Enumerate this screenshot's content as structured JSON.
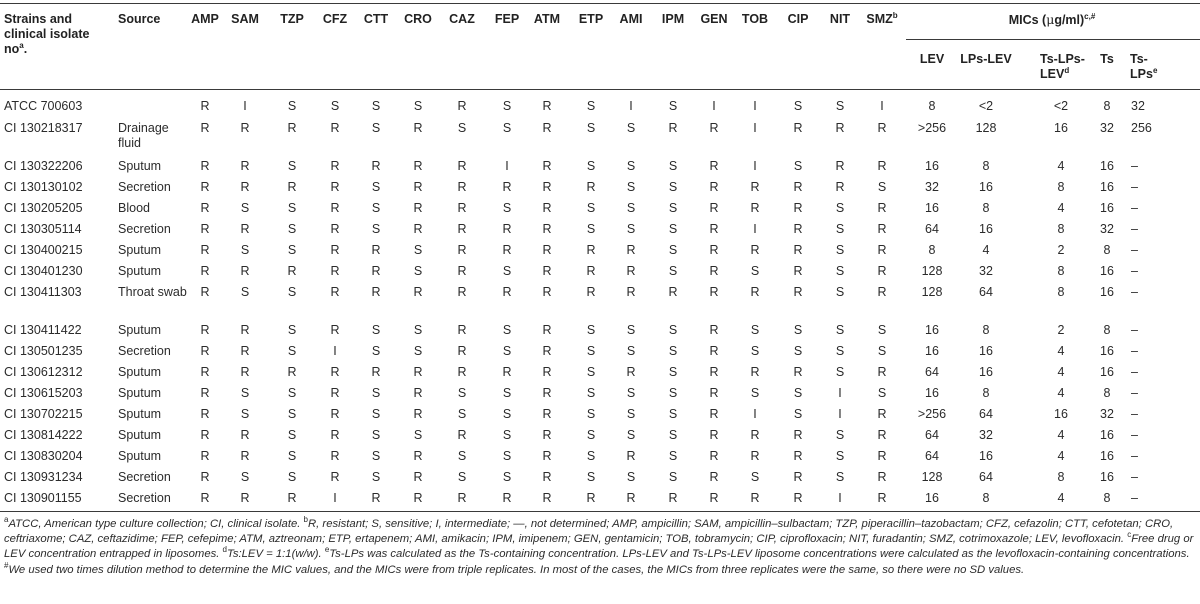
{
  "header": {
    "strains_line1": "Strains and",
    "strains_line2": "clinical isolate",
    "strains_line3": "no",
    "strains_sup": "a",
    "source": "Source",
    "abbrevs": [
      "AMP",
      "SAM",
      "TZP",
      "CFZ",
      "CTT",
      "CRO",
      "CAZ",
      "FEP",
      "ATM",
      "ETP",
      "AMI",
      "IPM",
      "GEN",
      "TOB",
      "CIP",
      "NIT",
      "SMZ"
    ],
    "smz_sup": "b",
    "mics_prefix": "MICs (",
    "mics_mu": "μ",
    "mics_suffix": "g/ml)",
    "mics_sup": "c,#",
    "mic_cols": {
      "lev": "LEV",
      "lps_lev": "LPs-LEV",
      "ts_lps_lev_1": "Ts-LPs-",
      "ts_lps_lev_2": "LEV",
      "ts_lps_lev_sup": "d",
      "ts": "Ts",
      "ts_lps_1": "Ts-",
      "ts_lps_2": "LPs",
      "ts_lps_sup": "e"
    }
  },
  "rows": [
    {
      "id": "ATCC 700603",
      "source": "",
      "vals": [
        "R",
        "I",
        "S",
        "S",
        "S",
        "S",
        "R",
        "S",
        "R",
        "S",
        "I",
        "S",
        "I",
        "I",
        "S",
        "S",
        "I"
      ],
      "mic": [
        "8",
        "<2",
        "<2",
        "8",
        "32"
      ]
    },
    {
      "id": "CI 130218317",
      "source": "Drainage fluid",
      "vals": [
        "R",
        "R",
        "R",
        "R",
        "S",
        "R",
        "S",
        "S",
        "R",
        "S",
        "S",
        "R",
        "R",
        "I",
        "R",
        "R",
        "R"
      ],
      "mic": [
        ">256",
        "128",
        "16",
        "32",
        "256"
      ]
    },
    {
      "id": "CI 130322206",
      "source": "Sputum",
      "vals": [
        "R",
        "R",
        "S",
        "R",
        "R",
        "R",
        "R",
        "I",
        "R",
        "S",
        "S",
        "S",
        "R",
        "I",
        "S",
        "R",
        "R"
      ],
      "mic": [
        "16",
        "8",
        "4",
        "16",
        "–"
      ]
    },
    {
      "id": "CI 130130102",
      "source": "Secretion",
      "vals": [
        "R",
        "R",
        "R",
        "R",
        "S",
        "R",
        "R",
        "R",
        "R",
        "R",
        "S",
        "S",
        "R",
        "R",
        "R",
        "R",
        "S"
      ],
      "mic": [
        "32",
        "16",
        "8",
        "16",
        "–"
      ]
    },
    {
      "id": "CI 130205205",
      "source": "Blood",
      "vals": [
        "R",
        "S",
        "S",
        "R",
        "S",
        "R",
        "R",
        "S",
        "R",
        "S",
        "S",
        "S",
        "R",
        "R",
        "R",
        "S",
        "R"
      ],
      "mic": [
        "16",
        "8",
        "4",
        "16",
        "–"
      ]
    },
    {
      "id": "CI 130305114",
      "source": "Secretion",
      "vals": [
        "R",
        "R",
        "S",
        "R",
        "S",
        "R",
        "R",
        "R",
        "R",
        "S",
        "S",
        "S",
        "R",
        "I",
        "R",
        "S",
        "R"
      ],
      "mic": [
        "64",
        "16",
        "8",
        "32",
        "–"
      ]
    },
    {
      "id": "CI 130400215",
      "source": "Sputum",
      "vals": [
        "R",
        "S",
        "S",
        "R",
        "R",
        "S",
        "R",
        "R",
        "R",
        "R",
        "R",
        "S",
        "R",
        "R",
        "R",
        "S",
        "R"
      ],
      "mic": [
        "8",
        "4",
        "2",
        "8",
        "–"
      ]
    },
    {
      "id": "CI 130401230",
      "source": "Sputum",
      "vals": [
        "R",
        "R",
        "R",
        "R",
        "R",
        "S",
        "R",
        "S",
        "R",
        "R",
        "R",
        "S",
        "R",
        "S",
        "R",
        "S",
        "R"
      ],
      "mic": [
        "128",
        "32",
        "8",
        "16",
        "–"
      ]
    },
    {
      "id": "CI 130411303",
      "source": "Throat swab",
      "vals": [
        "R",
        "S",
        "S",
        "R",
        "R",
        "R",
        "R",
        "R",
        "R",
        "R",
        "R",
        "R",
        "R",
        "R",
        "R",
        "S",
        "R"
      ],
      "mic": [
        "128",
        "64",
        "8",
        "16",
        "–"
      ]
    },
    {
      "id": "CI 130411422",
      "source": "Sputum",
      "vals": [
        "R",
        "R",
        "S",
        "R",
        "S",
        "S",
        "R",
        "S",
        "R",
        "S",
        "S",
        "S",
        "R",
        "S",
        "S",
        "S",
        "S"
      ],
      "mic": [
        "16",
        "8",
        "2",
        "8",
        "–"
      ]
    },
    {
      "id": "CI 130501235",
      "source": "Secretion",
      "vals": [
        "R",
        "R",
        "S",
        "I",
        "S",
        "S",
        "R",
        "S",
        "R",
        "S",
        "S",
        "S",
        "R",
        "S",
        "S",
        "S",
        "S"
      ],
      "mic": [
        "16",
        "16",
        "4",
        "16",
        "–"
      ]
    },
    {
      "id": "CI 130612312",
      "source": "Sputum",
      "vals": [
        "R",
        "R",
        "R",
        "R",
        "R",
        "R",
        "R",
        "R",
        "R",
        "S",
        "R",
        "S",
        "R",
        "R",
        "R",
        "S",
        "R"
      ],
      "mic": [
        "64",
        "16",
        "4",
        "16",
        "–"
      ]
    },
    {
      "id": "CI 130615203",
      "source": "Sputum",
      "vals": [
        "R",
        "S",
        "S",
        "R",
        "S",
        "R",
        "S",
        "S",
        "R",
        "S",
        "S",
        "S",
        "R",
        "S",
        "S",
        "I",
        "S"
      ],
      "mic": [
        "16",
        "8",
        "4",
        "8",
        "–"
      ]
    },
    {
      "id": "CI 130702215",
      "source": "Sputum",
      "vals": [
        "R",
        "S",
        "S",
        "R",
        "S",
        "R",
        "S",
        "S",
        "R",
        "S",
        "S",
        "S",
        "R",
        "I",
        "S",
        "I",
        "R"
      ],
      "mic": [
        ">256",
        "64",
        "16",
        "32",
        "–"
      ]
    },
    {
      "id": "CI 130814222",
      "source": "Sputum",
      "vals": [
        "R",
        "R",
        "S",
        "R",
        "S",
        "S",
        "R",
        "S",
        "R",
        "S",
        "S",
        "S",
        "R",
        "R",
        "R",
        "S",
        "R"
      ],
      "mic": [
        "64",
        "32",
        "4",
        "16",
        "–"
      ]
    },
    {
      "id": "CI 130830204",
      "source": "Sputum",
      "vals": [
        "R",
        "R",
        "S",
        "R",
        "S",
        "R",
        "S",
        "S",
        "R",
        "S",
        "R",
        "S",
        "R",
        "R",
        "R",
        "S",
        "R"
      ],
      "mic": [
        "64",
        "16",
        "4",
        "16",
        "–"
      ]
    },
    {
      "id": "CI 130931234",
      "source": "Secretion",
      "vals": [
        "R",
        "S",
        "S",
        "R",
        "S",
        "R",
        "S",
        "S",
        "R",
        "S",
        "S",
        "S",
        "R",
        "S",
        "R",
        "S",
        "R"
      ],
      "mic": [
        "128",
        "64",
        "8",
        "16",
        "–"
      ]
    },
    {
      "id": "CI 130901155",
      "source": "Secretion",
      "vals": [
        "R",
        "R",
        "R",
        "I",
        "R",
        "R",
        "R",
        "R",
        "R",
        "R",
        "R",
        "R",
        "R",
        "R",
        "R",
        "I",
        "R"
      ],
      "mic": [
        "16",
        "8",
        "4",
        "8",
        "–"
      ]
    }
  ],
  "footnote": {
    "a_sup": "a",
    "a_text": "ATCC, American type culture collection; CI, clinical isolate. ",
    "b_sup": "b",
    "b_text": "R, resistant; S, sensitive; I, intermediate; —, not determined; AMP, ampicillin; SAM, ampicillin–sulbactam; TZP, piperacillin–tazobactam; CFZ, cefazolin; CTT, cefotetan; CRO, ceftriaxome; CAZ, ceftazidime; FEP, cefepime; ATM, aztreonam; ETP, ertapenem; AMI, amikacin; IPM, imipenem; GEN, gentamicin; TOB, tobramycin; CIP, ciprofloxacin; NIT, furadantin; SMZ, cotrimoxazole; LEV, levofloxacin. ",
    "c_sup": "c",
    "c_text": "Free drug or LEV concentration entrapped in liposomes. ",
    "d_sup": "d",
    "d_text": "Ts:LEV = 1:1(w/w). ",
    "e_sup": "e",
    "e_text": "Ts-LPs was calculated as the Ts-containing concentration. LPs-LEV and Ts-LPs-LEV liposome concentrations were calculated as the levofloxacin-containing concentrations. ",
    "hash_sup": "#",
    "hash_text": "We used two times dilution method to determine the MIC values, and the MICs were from triple replicates. In most of the cases, the MICs from three replicates were the same, so there were no SD values."
  }
}
